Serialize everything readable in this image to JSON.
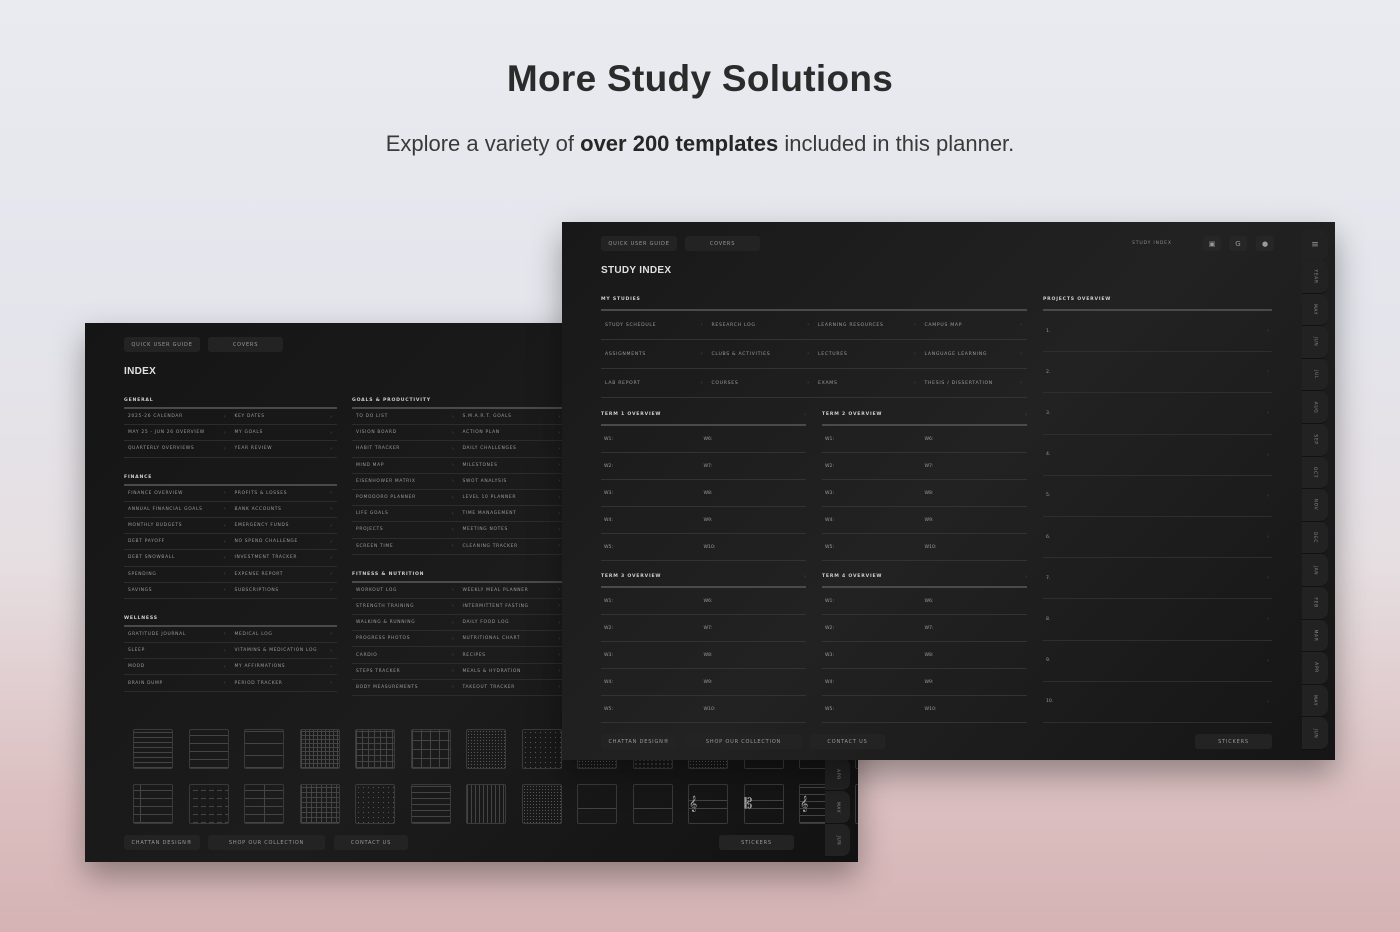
{
  "hero": {
    "title": "More Study Solutions",
    "subtitle_pre": "Explore a variety of ",
    "subtitle_bold": "over 200 templates",
    "subtitle_post": " included in this planner."
  },
  "back": {
    "top_buttons": [
      "QUICK USER GUIDE",
      "COVERS"
    ],
    "title": "INDEX",
    "left_sections": [
      {
        "label": "GENERAL",
        "items": [
          "2025-26 CALENDAR",
          "KEY DATES",
          "MAY 25 - JUN 26 OVERVIEW",
          "MY GOALS",
          "QUARTERLY OVERVIEWS",
          "YEAR REVIEW"
        ]
      },
      {
        "label": "FINANCE",
        "items": [
          "FINANCE OVERVIEW",
          "PROFITS & LOSSES",
          "ANNUAL FINANCIAL GOALS",
          "BANK ACCOUNTS",
          "MONTHLY BUDGETS",
          "EMERGENCY FUNDS",
          "DEBT PAYOFF",
          "NO SPEND CHALLENGE",
          "DEBT SNOWBALL",
          "INVESTMENT TRACKER",
          "SPENDING",
          "EXPENSE REPORT",
          "SAVINGS",
          "SUBSCRIPTIONS"
        ]
      },
      {
        "label": "WELLNESS",
        "items": [
          "GRATITUDE JOURNAL",
          "MEDICAL LOG",
          "SLEEP",
          "VITAMINS & MEDICATION LOG",
          "MOOD",
          "MY AFFIRMATIONS",
          "BRAIN DUMP",
          "PERIOD TRACKER"
        ]
      }
    ],
    "right_sections": [
      {
        "label": "GOALS & PRODUCTIVITY",
        "items": [
          "TO DO LIST",
          "S.M.A.R.T. GOALS",
          "VISION BOARD",
          "ACTION PLAN",
          "HABIT TRACKER",
          "DAILY CHALLENGES",
          "MIND MAP",
          "MILESTONES",
          "EISENHOWER MATRIX",
          "SWOT ANALYSIS",
          "POMODORO PLANNER",
          "LEVEL 10 PLANNER",
          "LIFE GOALS",
          "TIME MANAGEMENT",
          "PROJECTS",
          "MEETING NOTES",
          "SCREEN TIME",
          "CLEANING TRACKER"
        ]
      },
      {
        "label": "FITNESS & NUTRITION",
        "items": [
          "WORKOUT LOG",
          "WEEKLY MEAL PLANNER",
          "STRENGTH TRAINING",
          "INTERMITTENT FASTING",
          "WALKING & RUNNING",
          "DAILY FOOD LOG",
          "PROGRESS PHOTOS",
          "NUTRITIONAL CHART",
          "CARDIO",
          "RECIPES",
          "STEPS TRACKER",
          "MEALS & HYDRATION",
          "BODY MEASUREMENTS",
          "TAKEOUT TRACKER"
        ]
      }
    ],
    "paper_templates_row1": [
      "lined-dense",
      "lined",
      "lined-wide",
      "grid-fine",
      "grid",
      "grid-wide",
      "dot-grid",
      "dot-grid-wide",
      "dot-grid",
      "hex",
      "dot-grid",
      "blank",
      "blank",
      "blank"
    ],
    "paper_templates_row2": [
      "lined-margin",
      "dashed",
      "split-lined",
      "split-grid",
      "dots-column",
      "split-top",
      "split-grid-top",
      "split-dots-top",
      "cornell",
      "cornell",
      "treble-staff",
      "alto-staff",
      "grand-staff",
      "blank"
    ],
    "footer_buttons": [
      "CHATTAN DESIGN®",
      "SHOP OUR COLLECTION",
      "CONTACT US"
    ],
    "stickers": "STICKERS",
    "tabs": [
      "APR",
      "MAY",
      "JUN"
    ]
  },
  "front": {
    "top_buttons": [
      "QUICK USER GUIDE",
      "COVERS"
    ],
    "breadcrumb": "STUDY INDEX",
    "app_icons": [
      "goodnotes-icon",
      "google-icon",
      "apple-icon"
    ],
    "menu_icon": "hamburger-icon",
    "title": "STUDY INDEX",
    "my_studies": {
      "label": "MY STUDIES",
      "items": [
        "STUDY SCHEDULE",
        "RESEARCH LOG",
        "LEARNING RESOURCES",
        "CAMPUS MAP",
        "ASSIGNMENTS",
        "CLUBS & ACTIVITIES",
        "LECTURES",
        "LANGUAGE LEARNING",
        "LAB REPORT",
        "COURSES",
        "EXAMS",
        "THESIS / DISSERTATION"
      ]
    },
    "terms": [
      {
        "label": "TERM 1 OVERVIEW"
      },
      {
        "label": "TERM 2 OVERVIEW"
      },
      {
        "label": "TERM 3 OVERVIEW"
      },
      {
        "label": "TERM 4 OVERVIEW"
      }
    ],
    "week_labels": [
      "W1:",
      "W6:",
      "W2:",
      "W7:",
      "W3:",
      "W8:",
      "W4:",
      "W9:",
      "W5:",
      "W10:"
    ],
    "projects": {
      "label": "PROJECTS OVERVIEW",
      "items": [
        "1.",
        "2.",
        "3.",
        "4.",
        "5.",
        "6.",
        "7.",
        "8.",
        "9.",
        "10."
      ]
    },
    "footer_buttons": [
      "CHATTAN DESIGN®",
      "SHOP OUR COLLECTION",
      "CONTACT US"
    ],
    "stickers": "STICKERS",
    "tabs": [
      "YEAR",
      "MAY",
      "JUN",
      "JUL",
      "AUG",
      "SEP",
      "OCT",
      "NOV",
      "DEC",
      "JAN",
      "FEB",
      "MAR",
      "APR",
      "MAY",
      "JUN"
    ]
  }
}
